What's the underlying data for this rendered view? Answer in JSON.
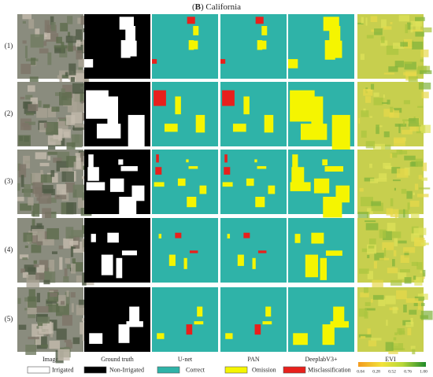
{
  "title": {
    "open": "(",
    "letter": "B",
    "rest": ") California"
  },
  "rows": [
    "(1)",
    "(2)",
    "(3)",
    "(4)",
    "(5)"
  ],
  "columns": [
    "Image",
    "Ground truth",
    "U-net",
    "PAN",
    "DeeplabV3+",
    "EVI"
  ],
  "legend": [
    "Irrigated",
    "Non-Irrigated",
    "Correct",
    "Omission",
    "Misclassification"
  ],
  "colorbar": {
    "ticks": [
      "0.04",
      "0.28",
      "0.52",
      "0.76",
      "1.00"
    ]
  }
}
